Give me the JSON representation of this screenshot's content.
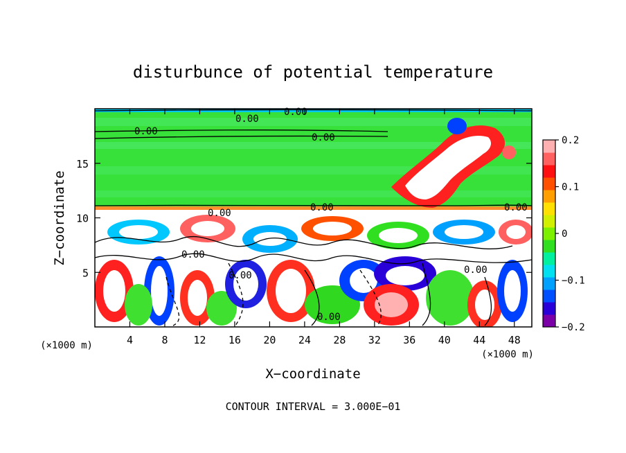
{
  "chart_data": {
    "type": "heatmap",
    "title": "disturbunce of potential temperature",
    "xlabel": "X−coordinate",
    "ylabel": "Z−coordinate",
    "x_unit": "(×1000 m)",
    "z_unit": "(×1000 m)",
    "xlim": [
      0,
      50
    ],
    "zlim": [
      0,
      20
    ],
    "x_ticks": [
      4,
      8,
      12,
      16,
      20,
      24,
      28,
      32,
      36,
      40,
      44,
      48
    ],
    "z_ticks": [
      5,
      10,
      15
    ],
    "colorbar": {
      "range": [
        -0.2,
        0.2
      ],
      "tick_values": [
        0.2,
        0.1,
        0,
        -0.1,
        -0.2
      ],
      "tick_labels": [
        "0.2",
        "0.1",
        "0",
        "−0.1",
        "−0.2"
      ],
      "colors": [
        "#7b00a8",
        "#2a00d8",
        "#0050ff",
        "#00a0ff",
        "#00e0f0",
        "#00f0a0",
        "#30e020",
        "#7cf000",
        "#d0f000",
        "#ffe000",
        "#ffa000",
        "#ff5000",
        "#ff1010",
        "#ff6060",
        "#ffb0b0"
      ]
    },
    "contour_labels": [
      "0.00",
      "0.00",
      "0.00",
      "0.00",
      "0.00",
      "0.00",
      "0.00",
      "0.00",
      "0.00",
      "0.00",
      "0.00"
    ],
    "contour_interval_text": "CONTOUR INTERVAL = 3.000E−01",
    "regions": {
      "upper_layer_value": 0,
      "upper_layer_z_range": [
        10.8,
        20
      ],
      "lower_layer_z_range": [
        0,
        10.8
      ]
    }
  }
}
